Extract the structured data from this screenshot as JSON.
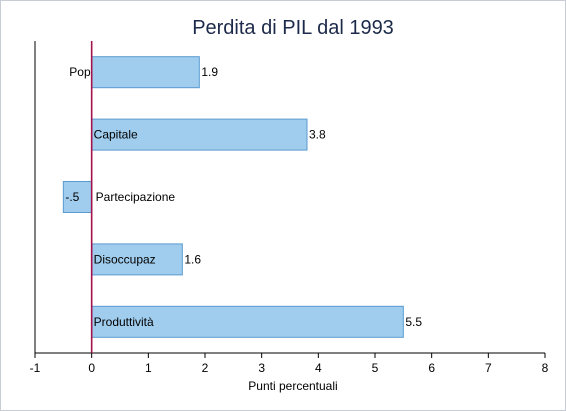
{
  "chart_data": {
    "type": "bar",
    "orientation": "horizontal",
    "title": "Perdita di PIL dal 1993",
    "xlabel": "Punti percentuali",
    "ylabel": "",
    "xlim": [
      -1,
      8
    ],
    "xticks": [
      -1,
      0,
      1,
      2,
      3,
      4,
      5,
      6,
      7,
      8
    ],
    "xtick_labels": [
      "-1",
      "0",
      "1",
      "2",
      "3",
      "4",
      "5",
      "6",
      "7",
      "8"
    ],
    "categories": [
      "Pop",
      "Capitale",
      "Partecipazione",
      "Disoccupaz",
      "Produttività"
    ],
    "values": [
      1.9,
      3.8,
      -0.5,
      1.6,
      5.5
    ],
    "value_labels": [
      "1.9",
      "3.8",
      "-.5",
      "1.6",
      "5.5"
    ],
    "grid": false,
    "legend": "none",
    "colors": {
      "bar_fill": "#a0cdee",
      "bar_stroke": "#5a9bd0",
      "zero_line": "#a3124a",
      "axis": "#000000",
      "title": "#1c2a4a"
    }
  }
}
